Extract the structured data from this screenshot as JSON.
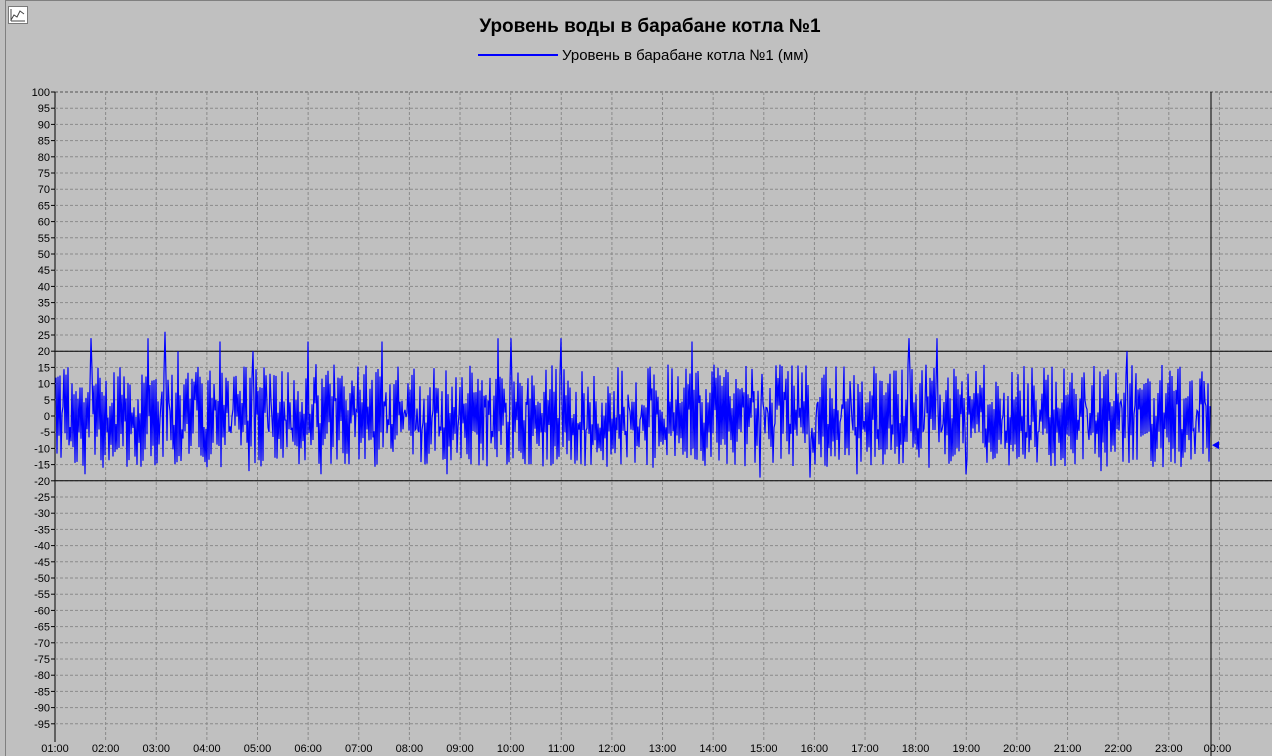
{
  "chart_data": {
    "type": "line",
    "title": "Уровень воды в барабане котла №1",
    "series": [
      {
        "name": "Уровень в барабане котла №1 (мм)",
        "color": "#0000ff",
        "x_start": "01:00",
        "x_end": "23:50",
        "approx_min": -19,
        "approx_max": 26,
        "approx_mean": 0,
        "peaks": [
          {
            "x": "01:43",
            "y": 24
          },
          {
            "x": "02:50",
            "y": 24
          },
          {
            "x": "03:10",
            "y": 26
          },
          {
            "x": "03:26",
            "y": 20
          },
          {
            "x": "04:15",
            "y": 23
          },
          {
            "x": "04:55",
            "y": 20
          },
          {
            "x": "06:00",
            "y": 23
          },
          {
            "x": "07:28",
            "y": 23
          },
          {
            "x": "09:45",
            "y": 24
          },
          {
            "x": "10:00",
            "y": 24
          },
          {
            "x": "11:00",
            "y": 24
          },
          {
            "x": "13:35",
            "y": 23
          },
          {
            "x": "17:52",
            "y": 24
          },
          {
            "x": "18:25",
            "y": 24
          },
          {
            "x": "22:10",
            "y": 20
          }
        ],
        "troughs": [
          {
            "x": "01:35",
            "y": -18
          },
          {
            "x": "04:50",
            "y": -17
          },
          {
            "x": "06:15",
            "y": -18
          },
          {
            "x": "08:45",
            "y": -18
          },
          {
            "x": "14:55",
            "y": -19
          },
          {
            "x": "15:55",
            "y": -19
          },
          {
            "x": "16:50",
            "y": -18
          },
          {
            "x": "19:00",
            "y": -18
          },
          {
            "x": "21:40",
            "y": -17
          }
        ]
      }
    ],
    "limits": [
      20,
      -20
    ],
    "current_marker_value": -9,
    "ylim": [
      -100,
      100
    ],
    "yticks": [
      100,
      95,
      90,
      85,
      80,
      75,
      70,
      65,
      60,
      55,
      50,
      45,
      40,
      35,
      30,
      25,
      20,
      15,
      10,
      5,
      0,
      -5,
      -10,
      -15,
      -20,
      -25,
      -30,
      -35,
      -40,
      -45,
      -50,
      -55,
      -60,
      -65,
      -70,
      -75,
      -80,
      -85,
      -90,
      -95
    ],
    "xticks": [
      "01:00",
      "02:00",
      "03:00",
      "04:00",
      "05:00",
      "06:00",
      "07:00",
      "08:00",
      "09:00",
      "10:00",
      "11:00",
      "12:00",
      "13:00",
      "14:00",
      "15:00",
      "16:00",
      "17:00",
      "18:00",
      "19:00",
      "20:00",
      "21:00",
      "22:00",
      "23:00",
      "00:00"
    ],
    "grid": true,
    "legend_position": "top-center"
  }
}
